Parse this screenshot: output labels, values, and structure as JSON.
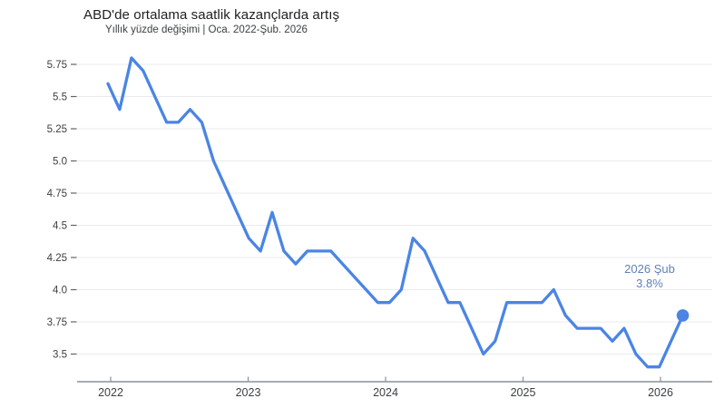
{
  "header": {
    "title": "ABD'de ortalama saatlik kazançlarda artış",
    "subtitle": "Yıllık yüzde değişimi | Oca. 2022-Şub. 2026"
  },
  "chart_data": {
    "type": "line",
    "title": "ABD'de ortalama saatlik kazançlarda artış",
    "subtitle": "Yıllık yüzde değişimi | Oca. 2022-Şub. 2026",
    "x": [
      "2022-01",
      "2022-02",
      "2022-03",
      "2022-04",
      "2022-05",
      "2022-06",
      "2022-07",
      "2022-08",
      "2022-09",
      "2022-10",
      "2022-11",
      "2022-12",
      "2023-01",
      "2023-02",
      "2023-03",
      "2023-04",
      "2023-05",
      "2023-06",
      "2023-07",
      "2023-08",
      "2023-09",
      "2023-10",
      "2023-11",
      "2023-12",
      "2024-01",
      "2024-02",
      "2024-03",
      "2024-04",
      "2024-05",
      "2024-06",
      "2024-07",
      "2024-08",
      "2024-09",
      "2024-10",
      "2024-11",
      "2024-12",
      "2025-01",
      "2025-02",
      "2025-03",
      "2025-04",
      "2025-05",
      "2025-06",
      "2025-07",
      "2025-08",
      "2025-09",
      "2025-10",
      "2025-11",
      "2025-12",
      "2026-01",
      "2026-02"
    ],
    "values": [
      5.6,
      5.4,
      5.8,
      5.7,
      5.5,
      5.3,
      5.3,
      5.4,
      5.3,
      5.0,
      4.8,
      4.6,
      4.4,
      4.3,
      4.6,
      4.3,
      4.2,
      4.3,
      4.3,
      4.3,
      4.2,
      4.1,
      4.0,
      3.9,
      3.9,
      4.0,
      4.4,
      4.3,
      4.1,
      3.9,
      3.9,
      3.7,
      3.5,
      3.6,
      3.9,
      3.9,
      3.9,
      3.9,
      4.0,
      3.8,
      3.7,
      3.7,
      3.7,
      3.6,
      3.7,
      3.5,
      3.4,
      3.4,
      3.6,
      3.8
    ],
    "y_tick_labels": [
      "5.75",
      "5.5",
      "5.25",
      "5.0",
      "4.75",
      "4.5",
      "4.25",
      "4.0",
      "3.75",
      "3.5"
    ],
    "x_tick_labels": [
      "2022",
      "2023",
      "2024",
      "2025",
      "2026"
    ],
    "ylim": [
      3.3,
      5.85
    ],
    "grid": "horizontal-only",
    "legend": "none",
    "annotation": {
      "line1": "2026 Şub",
      "line2": "3.8%",
      "value": 3.8
    },
    "colors": {
      "line": "#4a85e4",
      "end_dot": "#4a85e4",
      "annotation_text": "#5f82b8",
      "gridline": "#e9ebee",
      "axis_line": "#8b9196",
      "tick_text": "#3c4043",
      "title_text": "#202124",
      "background": "#ffffff"
    }
  }
}
